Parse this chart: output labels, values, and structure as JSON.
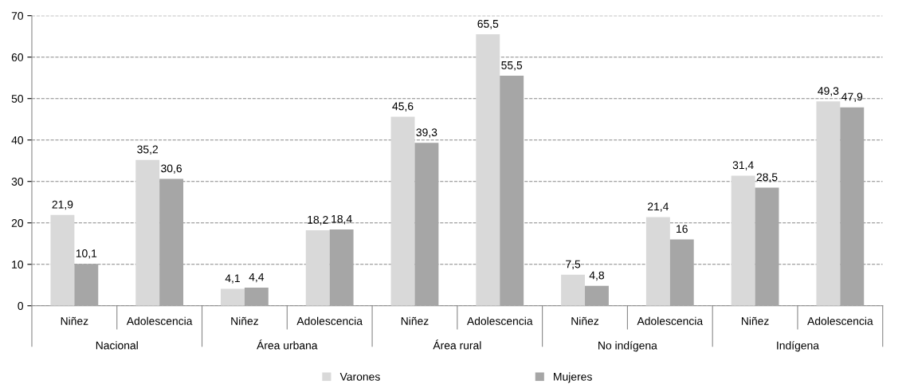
{
  "chart_data": {
    "type": "bar",
    "categories": [
      "Niñez",
      "Adolescencia",
      "Niñez",
      "Adolescencia",
      "Niñez",
      "Adolescencia",
      "Niñez",
      "Adolescencia",
      "Niñez",
      "Adolescencia"
    ],
    "annotations": [
      "Nacional",
      "Área urbana",
      "Área rural",
      "No indígena",
      "Indígena"
    ],
    "series": [
      {
        "name": "Varones",
        "color": "#d9d9d9",
        "values": [
          21.9,
          35.2,
          4.1,
          18.2,
          45.6,
          65.5,
          7.5,
          21.4,
          31.4,
          49.3
        ],
        "value_labels": [
          "21,9",
          "35,2",
          "4,1",
          "18,2",
          "45,6",
          "65,5",
          "7,5",
          "21,4",
          "31,4",
          "49,3"
        ]
      },
      {
        "name": "Mujeres",
        "color": "#a6a6a6",
        "values": [
          10.1,
          30.6,
          4.4,
          18.4,
          39.3,
          55.5,
          4.8,
          16,
          28.5,
          47.9
        ],
        "value_labels": [
          "10,1",
          "30,6",
          "4,4",
          "18,4",
          "39,3",
          "55,5",
          "4,8",
          "16",
          "28,5",
          "47,9"
        ]
      }
    ],
    "ylim": [
      0,
      70
    ],
    "yticks": [
      0,
      10,
      20,
      30,
      40,
      50,
      60,
      70
    ],
    "grid": "y",
    "legend": "bottom"
  }
}
